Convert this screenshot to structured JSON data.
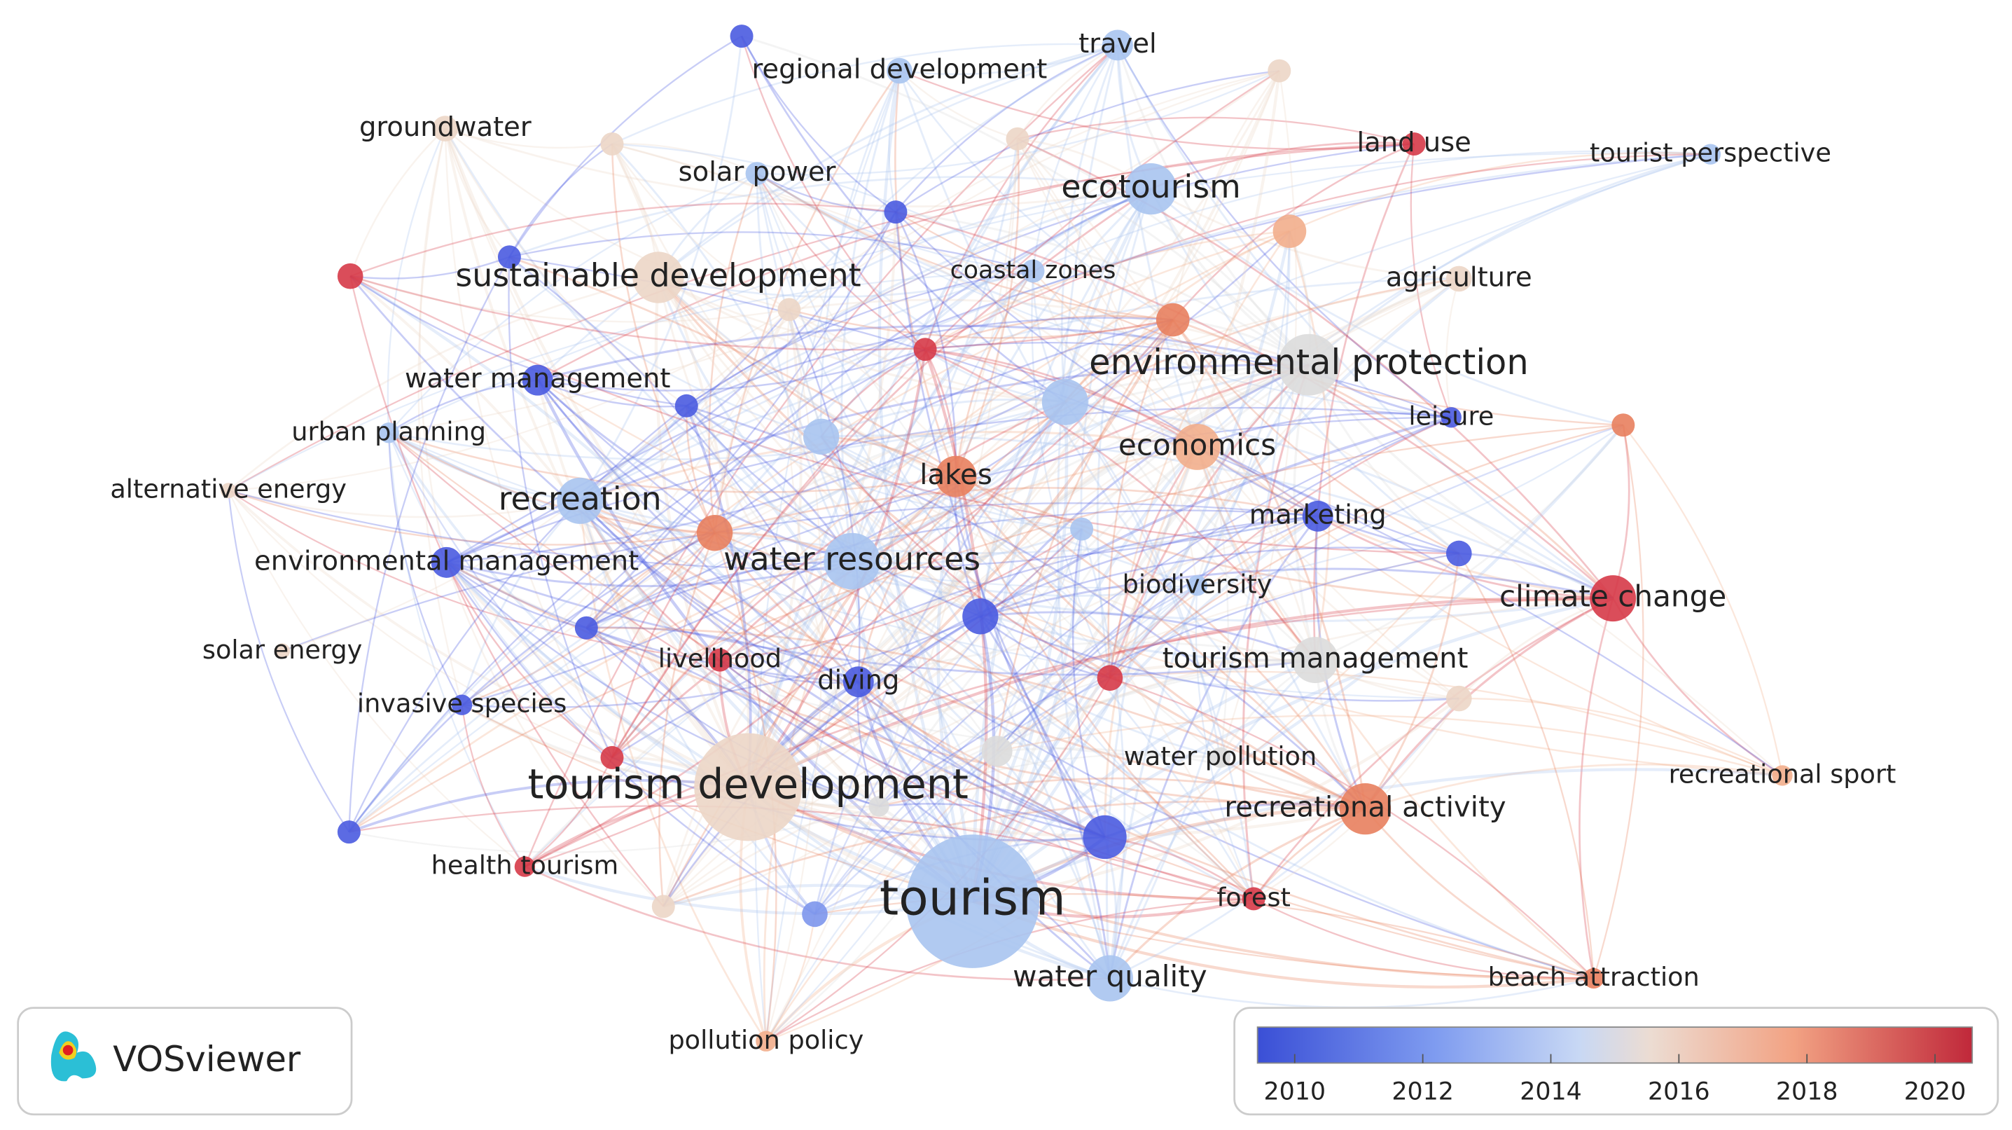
{
  "nodes": [
    {
      "label": "regional development"
    },
    {
      "label": "travel"
    },
    {
      "label": "groundwater"
    },
    {
      "label": "land use"
    },
    {
      "label": "tourist perspective"
    },
    {
      "label": "solar power"
    },
    {
      "label": "ecotourism"
    },
    {
      "label": "sustainable development"
    },
    {
      "label": "coastal zones"
    },
    {
      "label": "agriculture"
    },
    {
      "label": "environmental protection"
    },
    {
      "label": "water management"
    },
    {
      "label": "urban planning"
    },
    {
      "label": "leisure"
    },
    {
      "label": "economics"
    },
    {
      "label": "alternative energy"
    },
    {
      "label": "lakes"
    },
    {
      "label": "recreation"
    },
    {
      "label": "marketing"
    },
    {
      "label": "environmental management"
    },
    {
      "label": "water resources"
    },
    {
      "label": "climate change"
    },
    {
      "label": "biodiversity"
    },
    {
      "label": "solar energy"
    },
    {
      "label": "livelihood"
    },
    {
      "label": "tourism management"
    },
    {
      "label": "diving"
    },
    {
      "label": "invasive species"
    },
    {
      "label": "water pollution"
    },
    {
      "label": "tourism development"
    },
    {
      "label": "recreational sport"
    },
    {
      "label": "recreational activity"
    },
    {
      "label": "health tourism"
    },
    {
      "label": "tourism"
    },
    {
      "label": "forest"
    },
    {
      "label": "water quality"
    },
    {
      "label": "beach attraction"
    },
    {
      "label": "pollution policy"
    }
  ],
  "brand": "VOSviewer",
  "colorbar": {
    "ticks": [
      2010,
      2012,
      2014,
      2016,
      2018,
      2020
    ]
  }
}
